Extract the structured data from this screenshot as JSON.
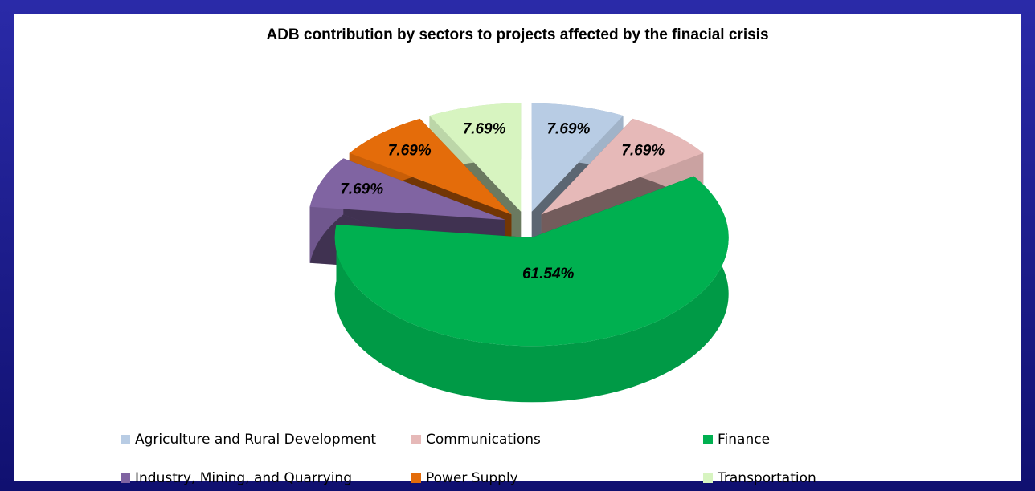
{
  "chart_data": {
    "type": "pie",
    "title": "ADB contribution by sectors to projects affected by the finacial crisis",
    "categories": [
      "Agriculture and Rural Development",
      "Communications",
      "Finance",
      "Industry, Mining, and Quarrying",
      "Power Supply",
      "Transportation"
    ],
    "values": [
      7.69,
      7.69,
      61.54,
      7.69,
      7.69,
      7.69
    ],
    "value_labels": [
      "7.69%",
      "7.69%",
      "61.54%",
      "7.69%",
      "7.69%",
      "7.69%"
    ],
    "colors": [
      "#b8cce4",
      "#e6b9b8",
      "#00b050",
      "#8064a2",
      "#e46c0a",
      "#d7f4c0"
    ],
    "legend": "bottom"
  }
}
